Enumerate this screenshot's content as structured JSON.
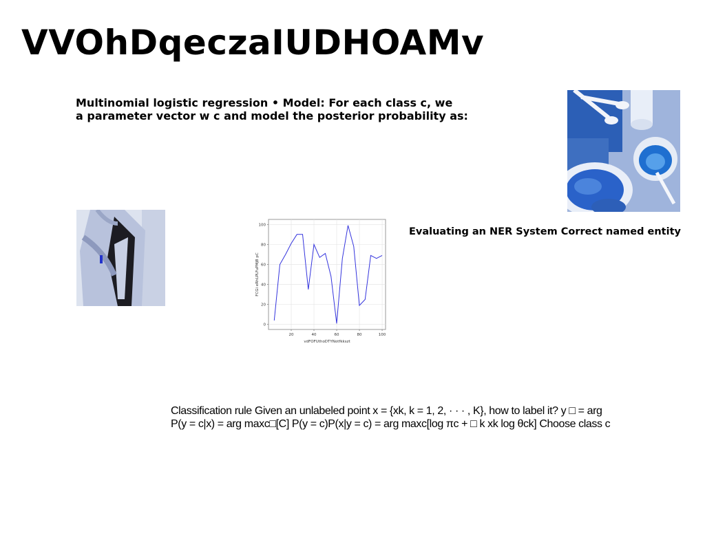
{
  "slide": {
    "title": "VVOhDqeczaIUDHOAMv",
    "block1": {
      "line1": "Multinomial logistic regression • Model: For each class c, we",
      "line2": "a parameter vector w c and model the posterior probability as:"
    },
    "block2": "Evaluating an NER System Correct named entity",
    "block3": {
      "line1": "Classification rule Given an unlabeled point x = {xk, k = 1, 2, · · · , K}, how to label it? y □ = arg",
      "line2": "P(y = c|x) = arg maxc□[C] P(y = c)P(x|y = c) = arg maxc[log πc + □ k xk log θck] Choose class c"
    }
  },
  "images": {
    "food_photo": "blue-food-bowls-photo",
    "person_photo": "person-portrait-photo"
  },
  "chart_data": {
    "type": "line",
    "title": "",
    "xlabel": "vdFOFUthoDTYNotfkkszt",
    "ylabel": "FCGi eRhLPLFuPMjB pC",
    "xlim": [
      0,
      103
    ],
    "ylim": [
      -5,
      105
    ],
    "xticks": [
      20,
      40,
      60,
      80,
      100
    ],
    "yticks": [
      0,
      20,
      40,
      60,
      80,
      100
    ],
    "grid": true,
    "color": "#3333dd",
    "series": [
      {
        "x": [
          5,
          10,
          15,
          20,
          25,
          30,
          35,
          40,
          45,
          50,
          55,
          60,
          65,
          70,
          75,
          80,
          85,
          90,
          95,
          100
        ],
        "y": [
          4,
          60,
          70,
          81,
          90,
          90,
          35,
          80,
          67,
          71,
          48,
          1,
          66,
          99,
          78,
          19,
          25,
          69,
          66,
          69
        ]
      }
    ]
  }
}
